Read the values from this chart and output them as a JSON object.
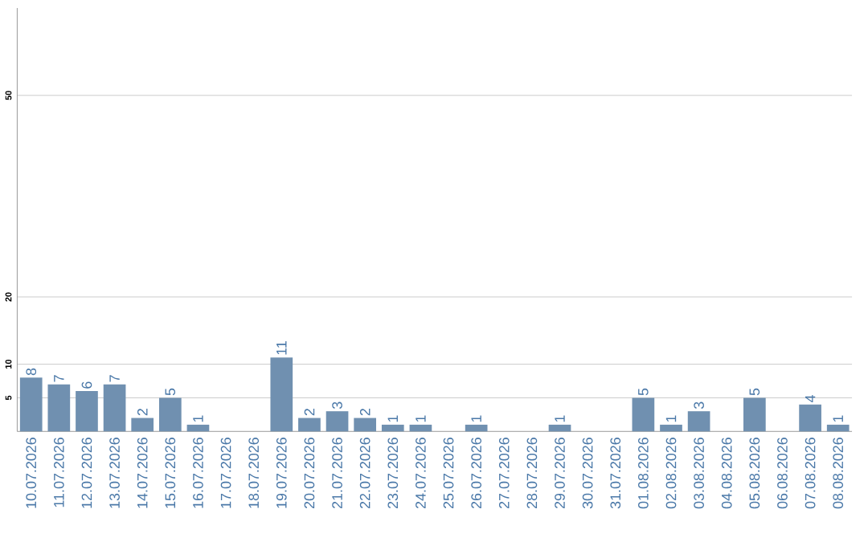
{
  "chart_data": {
    "type": "bar",
    "categories": [
      "10.07.2026",
      "11.07.2026",
      "12.07.2026",
      "13.07.2026",
      "14.07.2026",
      "15.07.2026",
      "16.07.2026",
      "17.07.2026",
      "18.07.2026",
      "19.07.2026",
      "20.07.2026",
      "21.07.2026",
      "22.07.2026",
      "23.07.2026",
      "24.07.2026",
      "25.07.2026",
      "26.07.2026",
      "27.07.2026",
      "28.07.2026",
      "29.07.2026",
      "30.07.2026",
      "31.07.2026",
      "01.08.2026",
      "02.08.2026",
      "03.08.2026",
      "04.08.2026",
      "05.08.2026",
      "06.08.2026",
      "07.08.2026",
      "08.08.2026"
    ],
    "values": [
      8,
      7,
      6,
      7,
      2,
      5,
      1,
      null,
      null,
      11,
      2,
      3,
      2,
      1,
      1,
      null,
      1,
      null,
      null,
      1,
      null,
      null,
      5,
      1,
      3,
      null,
      5,
      null,
      4,
      1
    ],
    "color": "#7090b0",
    "ylim": [
      0,
      63
    ],
    "yticks": [
      5,
      10,
      20,
      50
    ],
    "grid": "y",
    "data_labels": true
  }
}
